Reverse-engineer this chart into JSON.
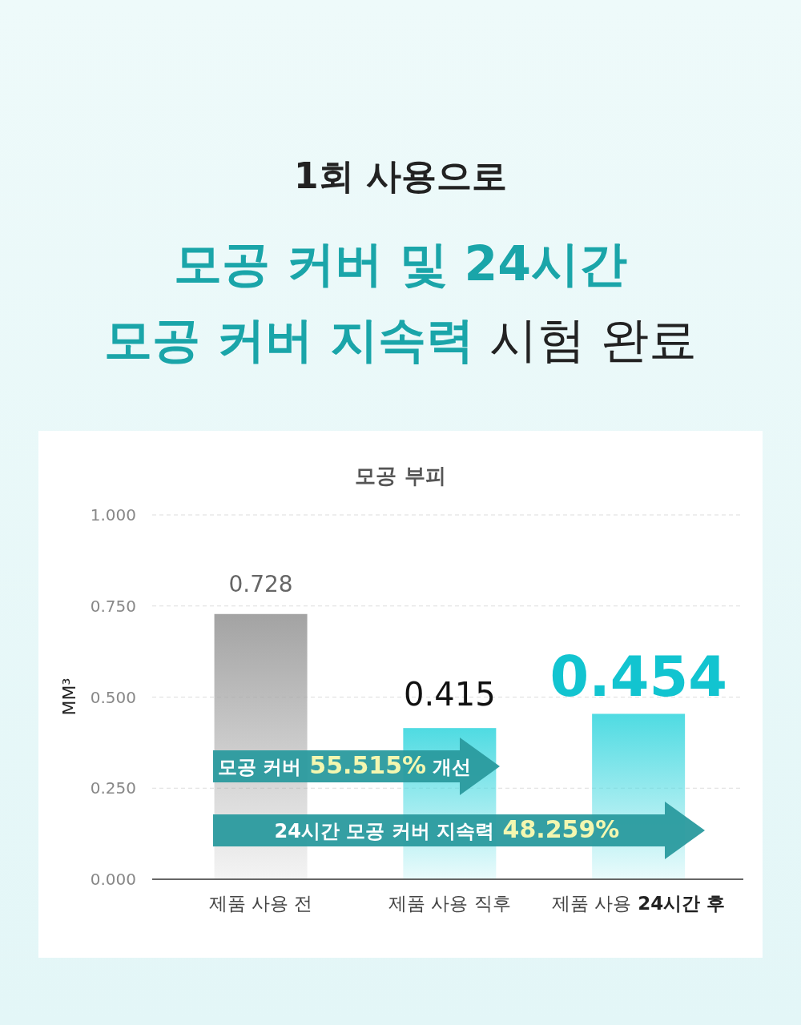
{
  "chart_data": {
    "type": "bar",
    "title": "1회 사용으로 모공 커버 및 24시간 모공 커버 지속력 시험 완료",
    "subtitle": "모공 부피",
    "ylabel": "MM³",
    "categories": [
      "제품 사용 전",
      "제품 사용 직후",
      "제품 사용 24시간 후"
    ],
    "values": [
      0.728,
      0.415,
      0.454
    ],
    "value_labels": [
      "0.728",
      "0.415",
      "0.454"
    ],
    "colors": [
      "#a3a3a3",
      "#4fdbe2",
      "#4fdbe2"
    ],
    "ylim": [
      0,
      1
    ],
    "yticks": [
      {
        "value": 0,
        "label": "0.000"
      },
      {
        "value": 0.25,
        "label": "0.250"
      },
      {
        "value": 0.5,
        "label": "0.500"
      },
      {
        "value": 0.75,
        "label": "0.750"
      },
      {
        "value": 1,
        "label": "1.000"
      }
    ],
    "grid": "y",
    "annotations": [
      "모공 커버 55.515% 개선",
      "24시간 모공 커버 지속력 48.259%"
    ]
  }
}
